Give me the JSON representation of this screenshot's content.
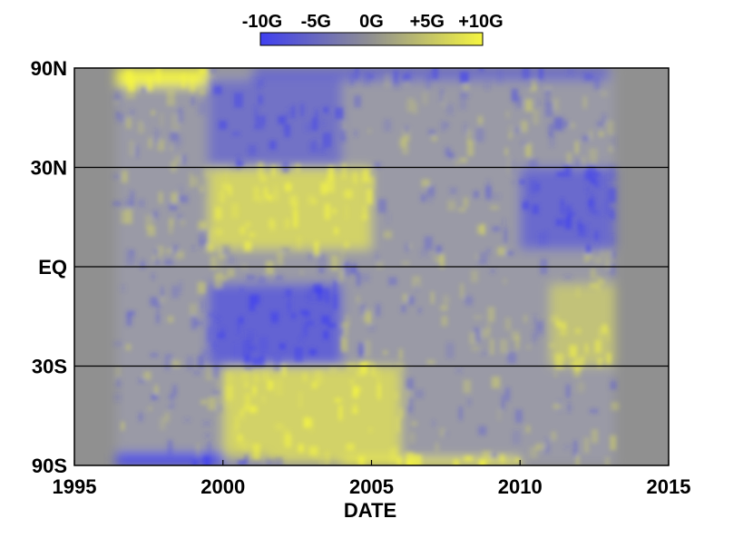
{
  "chart_data": {
    "type": "heatmap",
    "title": "",
    "xlabel": "DATE",
    "ylabel": "",
    "x_ticks": [
      "1995",
      "2000",
      "2005",
      "2010",
      "2015"
    ],
    "x_tick_values": [
      1995,
      2000,
      2005,
      2010,
      2015
    ],
    "xlim": [
      1995,
      2015
    ],
    "y_ticks": [
      "90N",
      "30N",
      "EQ",
      "30S",
      "90S"
    ],
    "y_tick_values": [
      90,
      30,
      0,
      -30,
      -90
    ],
    "y_scale": "sine-latitude",
    "ylim": [
      -90,
      90
    ],
    "data_extent_years": [
      1996.4,
      2013.2
    ],
    "grid": "horizontal lines at 30N, EQ and 30S",
    "colorbar": {
      "labels": [
        "-10G",
        "-5G",
        "0G",
        "+5G",
        "+10G"
      ],
      "values": [
        -10,
        -5,
        0,
        5,
        10
      ],
      "units": "G",
      "colors": {
        "negative": "#4040f0",
        "zero": "#909090",
        "positive": "#f5f540"
      },
      "placement": "top"
    },
    "background_color": "#909090",
    "features": [
      {
        "region": "north-polar",
        "years": [
          1996.4,
          1999.5
        ],
        "lat": [
          65,
          90
        ],
        "value": 10
      },
      {
        "region": "north-polar",
        "years": [
          2001,
          2013
        ],
        "lat": [
          70,
          90
        ],
        "value": -5
      },
      {
        "region": "south-polar",
        "years": [
          1996.4,
          2001.5
        ],
        "lat": [
          -90,
          -70
        ],
        "value": -10
      },
      {
        "region": "south-polar",
        "years": [
          2004,
          2010
        ],
        "lat": [
          -90,
          -75
        ],
        "value": 10
      },
      {
        "region": "north-activity-belt",
        "years": [
          1999.5,
          2005
        ],
        "lat": [
          5,
          30
        ],
        "value": 6
      },
      {
        "region": "north-activity-belt",
        "years": [
          2010,
          2013.2
        ],
        "lat": [
          5,
          30
        ],
        "value": -5
      },
      {
        "region": "south-activity-belt",
        "years": [
          1999.5,
          2004
        ],
        "lat": [
          -30,
          -5
        ],
        "value": -6
      },
      {
        "region": "south-activity-belt",
        "years": [
          2011,
          2013.2
        ],
        "lat": [
          -30,
          -5
        ],
        "value": 4
      },
      {
        "region": "south-poleward-surge",
        "years": [
          2000,
          2006
        ],
        "lat": [
          -80,
          -30
        ],
        "value": 6
      },
      {
        "region": "north-poleward-surge",
        "years": [
          1999.5,
          2004
        ],
        "lat": [
          30,
          70
        ],
        "value": -4
      }
    ]
  }
}
